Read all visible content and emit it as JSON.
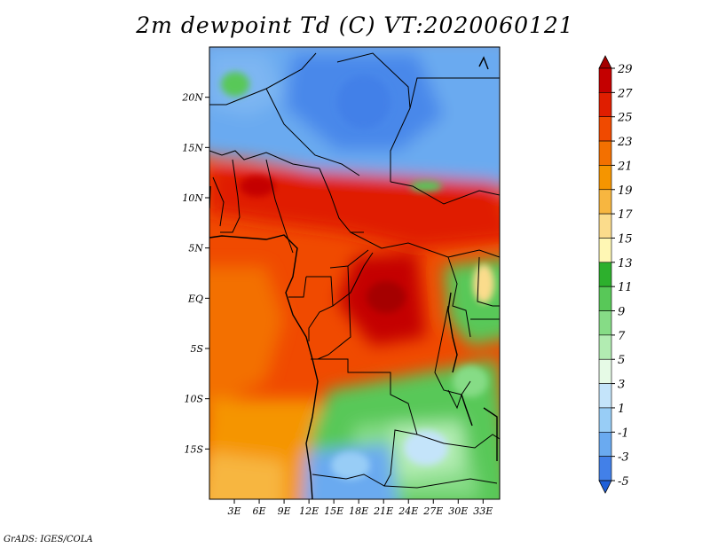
{
  "title": "2m dewpoint Td (C) VT:2020060121",
  "credit": "GrADS: IGES/COLA",
  "map": {
    "lon_ticks": [
      "3E",
      "6E",
      "9E",
      "12E",
      "15E",
      "18E",
      "21E",
      "24E",
      "27E",
      "30E",
      "33E"
    ],
    "lat_ticks": [
      "20N",
      "15N",
      "10N",
      "5N",
      "EQ",
      "5S",
      "10S",
      "15S"
    ],
    "lon_range": [
      0,
      35
    ],
    "lat_range": [
      -20,
      25
    ]
  },
  "colorbar": {
    "levels": [
      "29",
      "27",
      "25",
      "23",
      "21",
      "19",
      "17",
      "15",
      "13",
      "11",
      "9",
      "7",
      "5",
      "3",
      "1",
      "-1",
      "-3",
      "-5"
    ],
    "colors": [
      "#a50000",
      "#c40000",
      "#e01e00",
      "#f04a00",
      "#f37000",
      "#f59500",
      "#f7b640",
      "#fbdc8c",
      "#fff7b4",
      "#2db02d",
      "#58c858",
      "#86dc86",
      "#b2ecb2",
      "#e6fae6",
      "#c4e4fa",
      "#98cdf6",
      "#6aaaf0",
      "#4280e8",
      "#2060d8"
    ]
  }
}
